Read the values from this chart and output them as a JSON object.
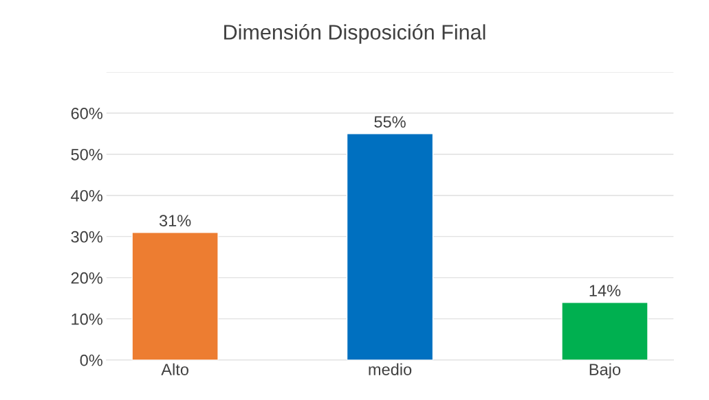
{
  "chart_data": {
    "type": "bar",
    "title": "Dimensión Disposición Final",
    "categories": [
      "Alto",
      "medio",
      "Bajo"
    ],
    "values": [
      31,
      55,
      14
    ],
    "colors": [
      "#ed7d31",
      "#0070c0",
      "#00b050"
    ],
    "value_labels": [
      "31%",
      "55%",
      "14%"
    ],
    "ylim": [
      0,
      70
    ],
    "yticks": [
      {
        "value": 0,
        "label": "0%"
      },
      {
        "value": 10,
        "label": "10%"
      },
      {
        "value": 20,
        "label": "20%"
      },
      {
        "value": 30,
        "label": "30%"
      },
      {
        "value": 40,
        "label": "40%"
      },
      {
        "value": 50,
        "label": "50%"
      },
      {
        "value": 60,
        "label": "60%"
      },
      {
        "value": 70,
        "label": null
      }
    ],
    "grid": "y"
  }
}
